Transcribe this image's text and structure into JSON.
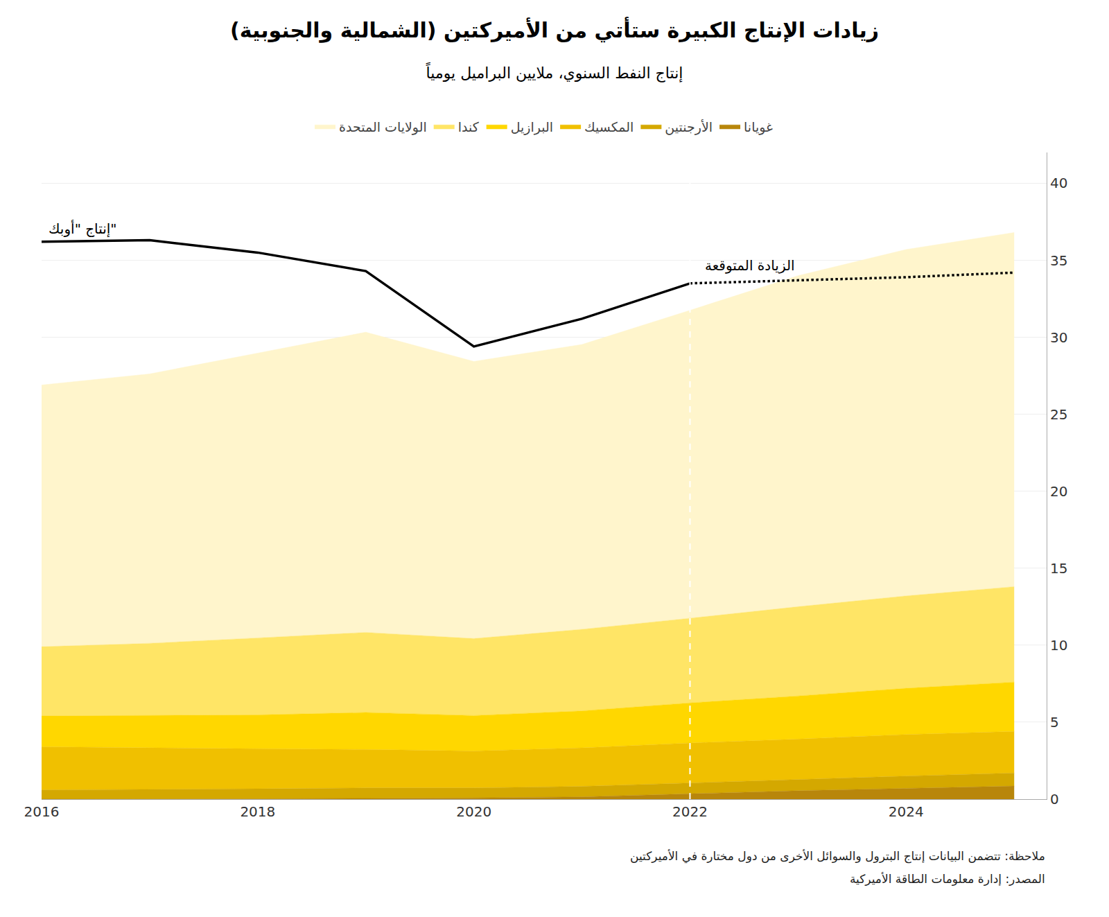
{
  "chart_data": {
    "type": "area",
    "stacked": true,
    "title": "زيادات الإنتاج الكبيرة ستأتي من الأميركتين (الشمالية والجنوبية)",
    "subtitle": "إنتاج النفط السنوي، ملايين البراميل يومياً",
    "x": [
      2016,
      2017,
      2018,
      2019,
      2020,
      2021,
      2022,
      2023,
      2024,
      2025
    ],
    "series": [
      {
        "name": "غويانا",
        "color": "#B8860B",
        "values": [
          0.0,
          0.0,
          0.02,
          0.05,
          0.08,
          0.15,
          0.35,
          0.55,
          0.7,
          0.85
        ]
      },
      {
        "name": "الأرجنتين",
        "color": "#D4A800",
        "values": [
          0.6,
          0.62,
          0.65,
          0.68,
          0.65,
          0.68,
          0.7,
          0.75,
          0.8,
          0.85
        ]
      },
      {
        "name": "المكسيك",
        "color": "#F0C000",
        "values": [
          2.8,
          2.7,
          2.6,
          2.5,
          2.4,
          2.5,
          2.6,
          2.6,
          2.7,
          2.7
        ]
      },
      {
        "name": "البرازيل",
        "color": "#FFD700",
        "values": [
          2.0,
          2.1,
          2.2,
          2.4,
          2.3,
          2.4,
          2.6,
          2.8,
          3.0,
          3.2
        ]
      },
      {
        "name": "كندا",
        "color": "#FFE566",
        "values": [
          4.5,
          4.7,
          5.0,
          5.2,
          5.0,
          5.3,
          5.5,
          5.8,
          6.0,
          6.2
        ]
      },
      {
        "name": "الولايات المتحدة",
        "color": "#FFF5CC",
        "values": [
          17.0,
          17.5,
          18.5,
          19.5,
          18.0,
          18.5,
          20.0,
          21.5,
          22.5,
          23.0
        ]
      },
      {
        "type": "line",
        "color": "#000000",
        "line_style": "solid",
        "values": [
          36.2,
          36.3,
          35.5,
          34.3,
          29.4,
          31.2,
          33.5,
          null,
          null,
          null
        ]
      },
      {
        "type": "line",
        "color": "#000000",
        "line_style": "dotted",
        "values": [
          null,
          null,
          null,
          null,
          null,
          null,
          33.5,
          33.7,
          33.9,
          34.2
        ]
      }
    ],
    "annotations": [
      {
        "text": "إنتاج \"أوبك\"",
        "x": 2016,
        "y": 36.2
      },
      {
        "text": "الزيادة المتوقعة",
        "x": 2022,
        "y": 33.5
      }
    ],
    "vertical_lines": [
      2022
    ],
    "notes": [
      "ملاحظة: تتضمن البيانات إنتاج البترول والسوائل الأخرى من دول مختارة في الأميركتين",
      "المصدر: إدارة معلومات الطاقة الأميركية"
    ],
    "xlim": [
      2016,
      2025.3
    ],
    "xticks": [
      2016,
      2018,
      2020,
      2022,
      2024
    ],
    "ylim": [
      0,
      42
    ],
    "yticks": [
      0,
      5,
      10,
      15,
      20,
      25,
      30,
      35,
      40
    ],
    "grid": "y",
    "legend": "top"
  }
}
